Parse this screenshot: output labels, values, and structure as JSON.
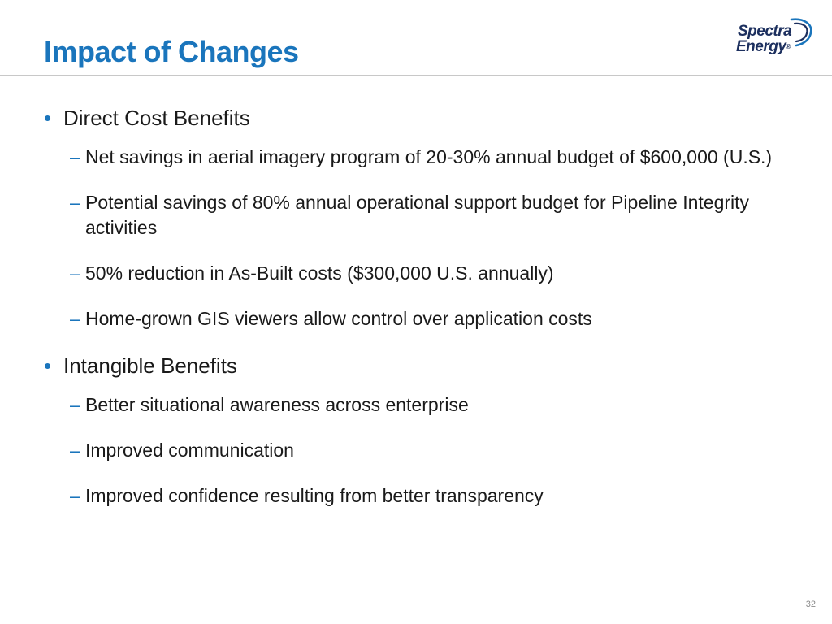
{
  "slide": {
    "title": "Impact of Changes",
    "page_number": "32"
  },
  "logo": {
    "line1": "Spectra",
    "line2": "Energy",
    "trademark": "®"
  },
  "bullets": [
    {
      "text": "Direct Cost Benefits",
      "subitems": [
        "Net savings in aerial imagery program of 20-30% annual budget of $600,000 (U.S.)",
        "Potential savings of 80% annual operational support budget for Pipeline Integrity activities",
        "50% reduction in As-Built costs ($300,000 U.S. annually)",
        "Home-grown GIS viewers allow control over application costs"
      ]
    },
    {
      "text": "Intangible Benefits",
      "subitems": [
        "Better situational awareness across enterprise",
        "Improved communication",
        "Improved confidence resulting from better transparency"
      ]
    }
  ],
  "symbols": {
    "bullet": "•",
    "dash": "–"
  },
  "colors": {
    "title": "#1a75bc",
    "bullet": "#1a75bc",
    "logo_text": "#1c2f5e",
    "logo_accent": "#1a75bc",
    "divider": "#c8c8c8",
    "body_text": "#1a1a1a"
  }
}
